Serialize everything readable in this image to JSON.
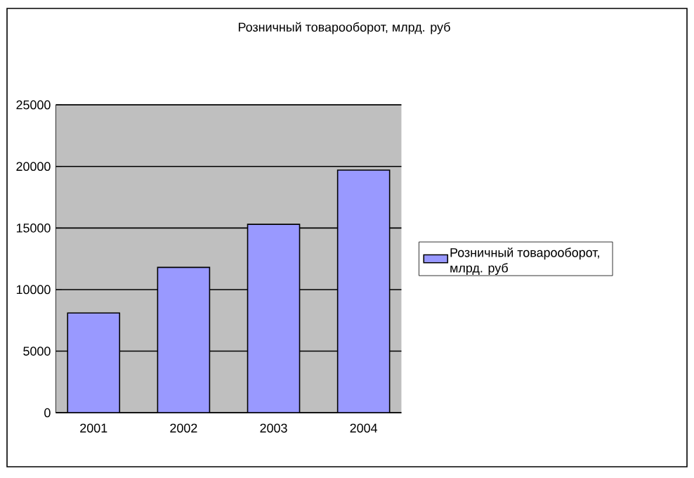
{
  "chart_data": {
    "type": "bar",
    "title": "Розничный товарооборот, млрд. руб",
    "categories": [
      "2001",
      "2002",
      "2003",
      "2004"
    ],
    "series": [
      {
        "name": "Розничный товарооборот, млрд. руб",
        "color": "#9999ff",
        "values": [
          8100,
          11800,
          15300,
          19700
        ]
      }
    ],
    "ylim": [
      0,
      25000
    ],
    "yticks": [
      0,
      5000,
      10000,
      15000,
      20000,
      25000
    ],
    "grid": "y",
    "legend": "right"
  }
}
